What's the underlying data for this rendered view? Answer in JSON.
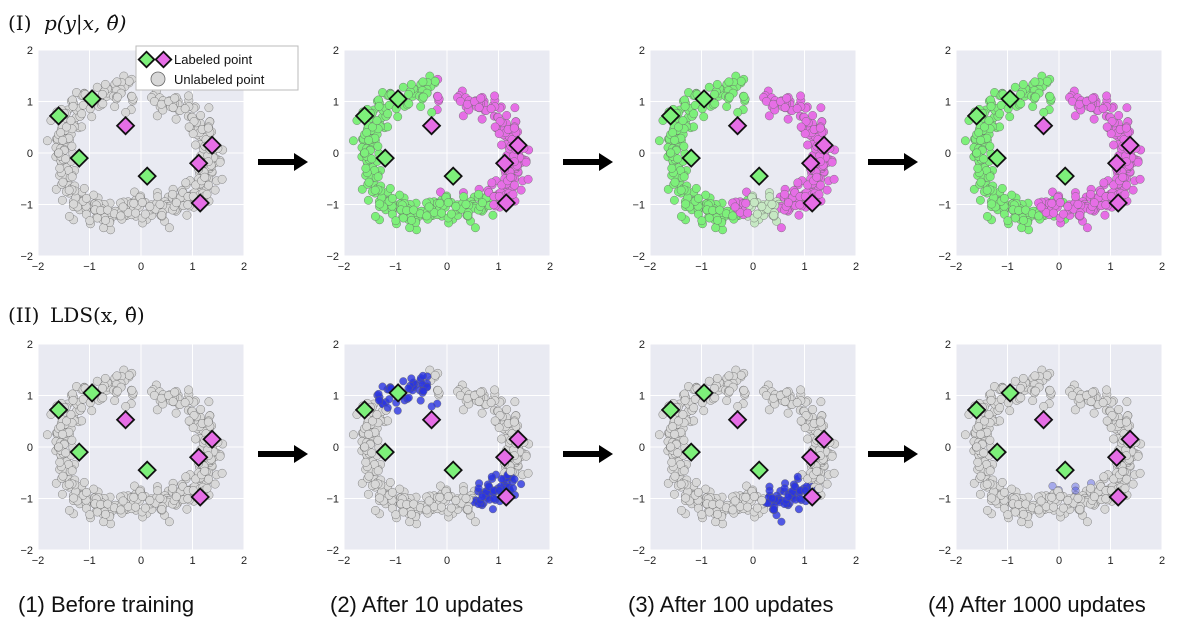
{
  "row_titles": [
    {
      "label": "(I)",
      "math": "p(y|x, θ̂)"
    },
    {
      "label": "(II)",
      "math": "LDS(x, θ̂)"
    }
  ],
  "captions": [
    "(1) Before training",
    "(2) After 10 updates",
    "(3) After 100 updates",
    "(4) After 1000 updates"
  ],
  "legend": {
    "labeled": "Labeled point",
    "unlabeled": "Unlabeled point"
  },
  "colors": {
    "panel_bg": "#e9eaf2",
    "grid": "#ffffff",
    "unlabeled": "#d8d8d8",
    "green": "#7df07a",
    "magenta": "#e66ee6",
    "blue": "#2a34e0",
    "edge": "#555555"
  },
  "chart_data": {
    "type": "scatter",
    "description_of_grid": "2 rows x 4 columns of scatter panels of a two-moons dataset",
    "xlim": [
      -2,
      2
    ],
    "ylim": [
      -2,
      2
    ],
    "xticks": [
      -2,
      -1,
      0,
      1,
      2
    ],
    "yticks": [
      -2,
      -1,
      0,
      1,
      2
    ],
    "grid": true,
    "labeled_points": [
      {
        "x": -1.6,
        "y": 0.72,
        "class": "green"
      },
      {
        "x": -0.95,
        "y": 1.05,
        "class": "green"
      },
      {
        "x": -1.2,
        "y": -0.1,
        "class": "green"
      },
      {
        "x": 0.12,
        "y": -0.45,
        "class": "green"
      },
      {
        "x": -0.3,
        "y": 0.53,
        "class": "magenta"
      },
      {
        "x": 1.38,
        "y": 0.15,
        "class": "magenta"
      },
      {
        "x": 1.12,
        "y": -0.2,
        "class": "magenta"
      },
      {
        "x": 1.15,
        "y": -0.97,
        "class": "magenta"
      }
    ],
    "moons": {
      "upper": {
        "center": [
          -0.25,
          0.0
        ],
        "radius": 1.1,
        "noise": 0.16
      },
      "lower": {
        "center": [
          0.35,
          0.35
        ],
        "radius": 1.1,
        "noise": 0.16
      }
    },
    "panels": [
      {
        "row": 0,
        "col": 0,
        "mode": "unlabeled"
      },
      {
        "row": 0,
        "col": 1,
        "mode": "classify",
        "stage": 1
      },
      {
        "row": 0,
        "col": 2,
        "mode": "classify",
        "stage": 2
      },
      {
        "row": 0,
        "col": 3,
        "mode": "classify",
        "stage": 3
      },
      {
        "row": 1,
        "col": 0,
        "mode": "unlabeled"
      },
      {
        "row": 1,
        "col": 1,
        "mode": "lds",
        "stage": 1
      },
      {
        "row": 1,
        "col": 2,
        "mode": "lds",
        "stage": 2
      },
      {
        "row": 1,
        "col": 3,
        "mode": "lds",
        "stage": 3
      }
    ]
  }
}
